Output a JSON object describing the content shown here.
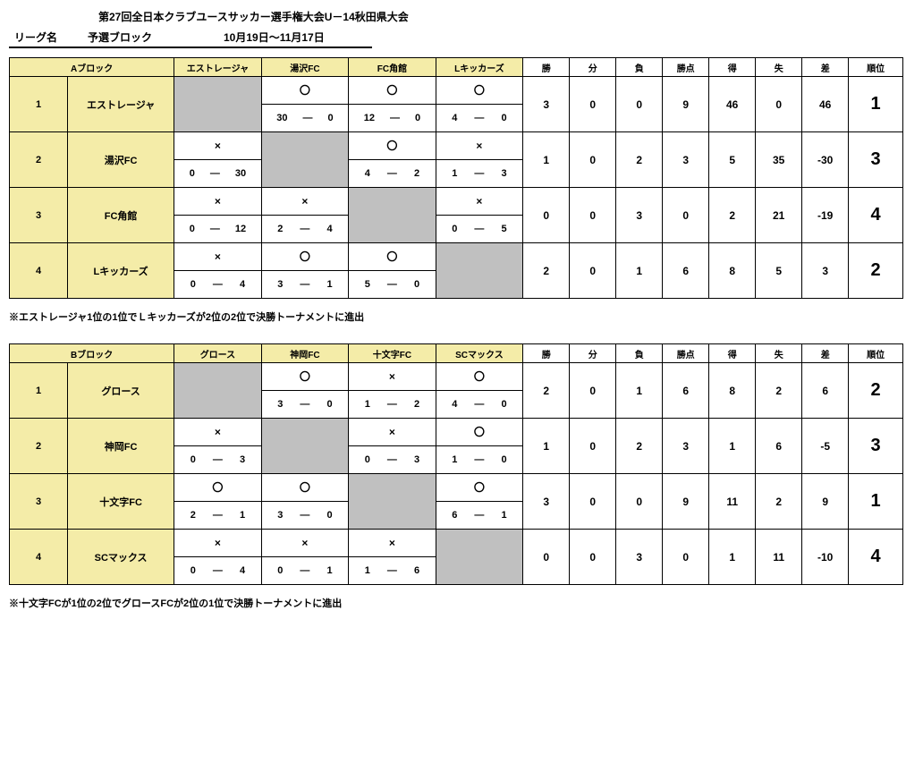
{
  "title": "第27回全日本クラブユースサッカー選手権大会U－14秋田県大会",
  "league_label": "リーグ名",
  "league_value": "予選ブロック",
  "date_range": "10月19日～11月17日",
  "stat_headers": [
    "勝",
    "分",
    "負",
    "勝点",
    "得",
    "失",
    "差",
    "順位"
  ],
  "blocks": [
    {
      "name": "Aブロック",
      "teams_short": [
        "エストレージャ",
        "湯沢FC",
        "FC角館",
        "Lキッカーズ"
      ],
      "rows": [
        {
          "idx": "1",
          "name": "エストレージャ",
          "vs": [
            null,
            {
              "mark": "〇",
              "a": "30",
              "b": "0"
            },
            {
              "mark": "〇",
              "a": "12",
              "b": "0"
            },
            {
              "mark": "〇",
              "a": "4",
              "b": "0"
            }
          ],
          "stats": [
            "3",
            "0",
            "0",
            "9",
            "46",
            "0",
            "46"
          ],
          "rank": "1"
        },
        {
          "idx": "2",
          "name": "湯沢FC",
          "vs": [
            {
              "mark": "×",
              "a": "0",
              "b": "30"
            },
            null,
            {
              "mark": "〇",
              "a": "4",
              "b": "2"
            },
            {
              "mark": "×",
              "a": "1",
              "b": "3"
            }
          ],
          "stats": [
            "1",
            "0",
            "2",
            "3",
            "5",
            "35",
            "-30"
          ],
          "rank": "3"
        },
        {
          "idx": "3",
          "name": "FC角館",
          "vs": [
            {
              "mark": "×",
              "a": "0",
              "b": "12"
            },
            {
              "mark": "×",
              "a": "2",
              "b": "4"
            },
            null,
            {
              "mark": "×",
              "a": "0",
              "b": "5"
            }
          ],
          "stats": [
            "0",
            "0",
            "3",
            "0",
            "2",
            "21",
            "-19"
          ],
          "rank": "4"
        },
        {
          "idx": "4",
          "name": "Lキッカーズ",
          "vs": [
            {
              "mark": "×",
              "a": "0",
              "b": "4"
            },
            {
              "mark": "〇",
              "a": "3",
              "b": "1"
            },
            {
              "mark": "〇",
              "a": "5",
              "b": "0"
            },
            null
          ],
          "stats": [
            "2",
            "0",
            "1",
            "6",
            "8",
            "5",
            "3"
          ],
          "rank": "2"
        }
      ],
      "note": "※エストレージャ1位の1位でＬキッカーズが2位の2位で決勝トーナメントに進出"
    },
    {
      "name": "Bブロック",
      "teams_short": [
        "グロース",
        "神岡FC",
        "十文字FC",
        "SCマックス"
      ],
      "rows": [
        {
          "idx": "1",
          "name": "グロース",
          "vs": [
            null,
            {
              "mark": "〇",
              "a": "3",
              "b": "0"
            },
            {
              "mark": "×",
              "a": "1",
              "b": "2"
            },
            {
              "mark": "〇",
              "a": "4",
              "b": "0"
            }
          ],
          "stats": [
            "2",
            "0",
            "1",
            "6",
            "8",
            "2",
            "6"
          ],
          "rank": "2"
        },
        {
          "idx": "2",
          "name": "神岡FC",
          "vs": [
            {
              "mark": "×",
              "a": "0",
              "b": "3"
            },
            null,
            {
              "mark": "×",
              "a": "0",
              "b": "3"
            },
            {
              "mark": "〇",
              "a": "1",
              "b": "0"
            }
          ],
          "stats": [
            "1",
            "0",
            "2",
            "3",
            "1",
            "6",
            "-5"
          ],
          "rank": "3"
        },
        {
          "idx": "3",
          "name": "十文字FC",
          "vs": [
            {
              "mark": "〇",
              "a": "2",
              "b": "1"
            },
            {
              "mark": "〇",
              "a": "3",
              "b": "0"
            },
            null,
            {
              "mark": "〇",
              "a": "6",
              "b": "1"
            }
          ],
          "stats": [
            "3",
            "0",
            "0",
            "9",
            "11",
            "2",
            "9"
          ],
          "rank": "1"
        },
        {
          "idx": "4",
          "name": "SCマックス",
          "vs": [
            {
              "mark": "×",
              "a": "0",
              "b": "4"
            },
            {
              "mark": "×",
              "a": "0",
              "b": "1"
            },
            {
              "mark": "×",
              "a": "1",
              "b": "6"
            },
            null
          ],
          "stats": [
            "0",
            "0",
            "3",
            "0",
            "1",
            "11",
            "-10"
          ],
          "rank": "4"
        }
      ],
      "note": "※十文字FCが1位の2位でグロースFCが2位の1位で決勝トーナメントに進出"
    }
  ]
}
